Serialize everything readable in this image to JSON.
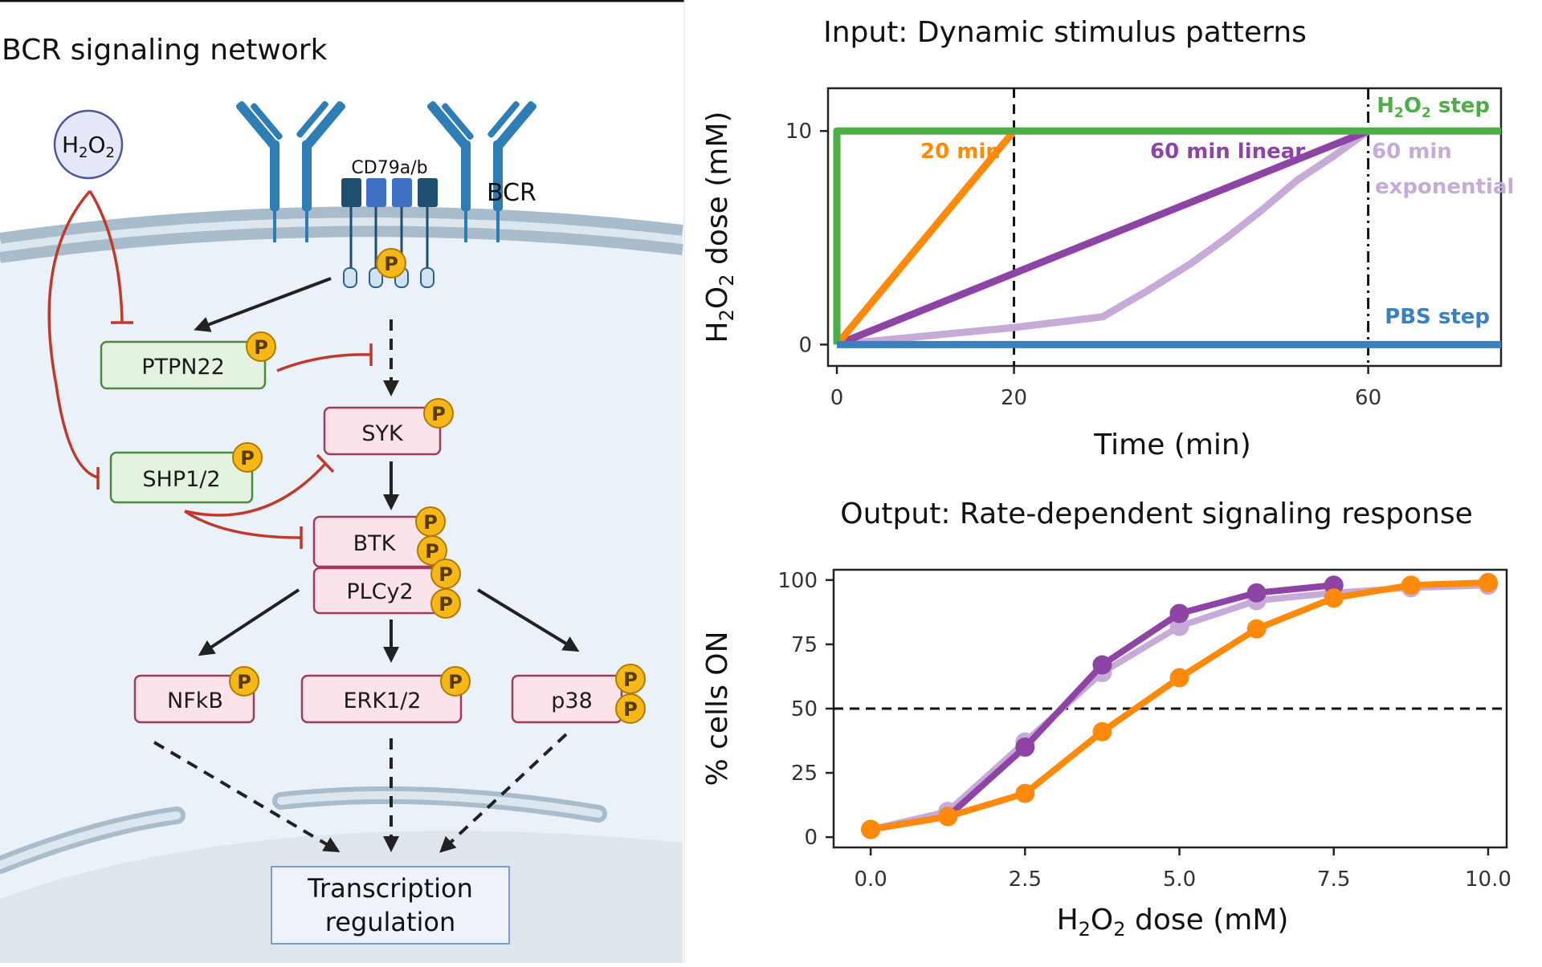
{
  "left_panel": {
    "title": "BCR signaling network",
    "h2o2": "H",
    "h2o2_sub": "2",
    "h2o2_mid": "O",
    "h2o2_sub2": "2",
    "cd79": "CD79a/b",
    "bcr": "BCR",
    "phospho": "P",
    "nodes": {
      "ptpn22": "PTPN22",
      "syk": "SYK",
      "shp": "SHP1/2",
      "btk": "BTK",
      "plcy2": "PLCy2",
      "nfkb": "NFkB",
      "erk": "ERK1/2",
      "p38": "p38",
      "transcription_line1": "Transcription",
      "transcription_line2": "regulation"
    },
    "colors": {
      "membrane": "#a9bccb",
      "cytoplasm": "#eaf1f8",
      "nucleus": "#e1e7ee",
      "receptor": "#2f7db5",
      "activating_arrow": "#222222",
      "inhibitory_arrow": "#c0392b",
      "kinase_fill": "#fbe3e9",
      "kinase_stroke": "#a23a5a",
      "phosphatase_fill": "#e4f3df",
      "phosphatase_stroke": "#4e8a3b",
      "phospho_fill": "#f6b818"
    }
  },
  "top_chart": {
    "title": "Input: Dynamic stimulus patterns",
    "ylabel_pre": "H",
    "ylabel_sub1": "2",
    "ylabel_mid": "O",
    "ylabel_sub2": "2",
    "ylabel_post": " dose (mM)",
    "xlabel": "Time (min)",
    "x_ticks": [
      "0",
      "20",
      "60"
    ],
    "y_ticks": [
      "0",
      "10"
    ],
    "labels": {
      "h2o2_step_pre": "H",
      "h2o2_step_sub1": "2",
      "h2o2_step_mid": "O",
      "h2o2_step_sub2": "2",
      "h2o2_step_post": " step",
      "min20": "20 min",
      "linear60": "60 min linear",
      "exp60_line1": "60 min",
      "exp60_line2": "exponential",
      "pbs": "PBS step"
    }
  },
  "bottom_chart": {
    "title": "Output: Rate-dependent signaling response",
    "ylabel": "% cells ON",
    "xlabel_pre": "H",
    "xlabel_sub1": "2",
    "xlabel_mid": "O",
    "xlabel_sub2": "2",
    "xlabel_post": " dose (mM)",
    "x_ticks": [
      "0.0",
      "2.5",
      "5.0",
      "7.5",
      "10.0"
    ],
    "y_ticks": [
      "0",
      "25",
      "50",
      "75",
      "100"
    ]
  },
  "chart_data": [
    {
      "type": "line",
      "xlabel": "Time (min)",
      "ylabel": "H2O2 dose (mM)",
      "xlim": [
        -1,
        75
      ],
      "ylim": [
        -1,
        12
      ],
      "vlines": [
        20,
        60
      ],
      "series": [
        {
          "name": "H2O2 step",
          "color": "#4caf45",
          "x": [
            0,
            0,
            75
          ],
          "y": [
            0,
            10,
            10
          ]
        },
        {
          "name": "20 min",
          "color": "#ff8a0a",
          "x": [
            0,
            20
          ],
          "y": [
            0,
            10
          ]
        },
        {
          "name": "60 min linear",
          "color": "#8e44a5",
          "x": [
            0,
            60
          ],
          "y": [
            0,
            10
          ]
        },
        {
          "name": "60 min exponential",
          "color": "#c6abd8",
          "x": [
            0,
            10,
            20,
            30,
            35,
            40,
            44,
            48,
            52,
            56,
            60
          ],
          "y": [
            0,
            0.4,
            0.8,
            1.3,
            2.5,
            3.8,
            5.0,
            6.3,
            7.7,
            8.8,
            10
          ]
        },
        {
          "name": "PBS step",
          "color": "#3a7fbe",
          "x": [
            0,
            75
          ],
          "y": [
            0,
            0
          ]
        }
      ]
    },
    {
      "type": "line",
      "xlabel": "H2O2 dose (mM)",
      "ylabel": "% cells ON",
      "xlim": [
        -0.6,
        10.3
      ],
      "ylim": [
        -4,
        104
      ],
      "hline": 50,
      "series": [
        {
          "name": "60 min exponential",
          "color": "#c6abd8",
          "x": [
            0,
            1.25,
            2.5,
            3.75,
            5.0,
            6.25,
            7.5,
            8.75,
            10.0
          ],
          "y": [
            3,
            10,
            37,
            64,
            82,
            92,
            95,
            97,
            98
          ]
        },
        {
          "name": "60 min linear",
          "color": "#8e44a5",
          "x": [
            0,
            1.25,
            2.5,
            3.75,
            5.0,
            6.25,
            7.5
          ],
          "y": [
            3,
            8,
            35,
            67,
            87,
            95,
            98
          ]
        },
        {
          "name": "20 min",
          "color": "#ff8a0a",
          "x": [
            0,
            1.25,
            2.5,
            3.75,
            5.0,
            6.25,
            7.5,
            8.75,
            10.0
          ],
          "y": [
            3,
            8,
            17,
            41,
            62,
            81,
            93,
            98,
            99
          ]
        }
      ]
    }
  ]
}
